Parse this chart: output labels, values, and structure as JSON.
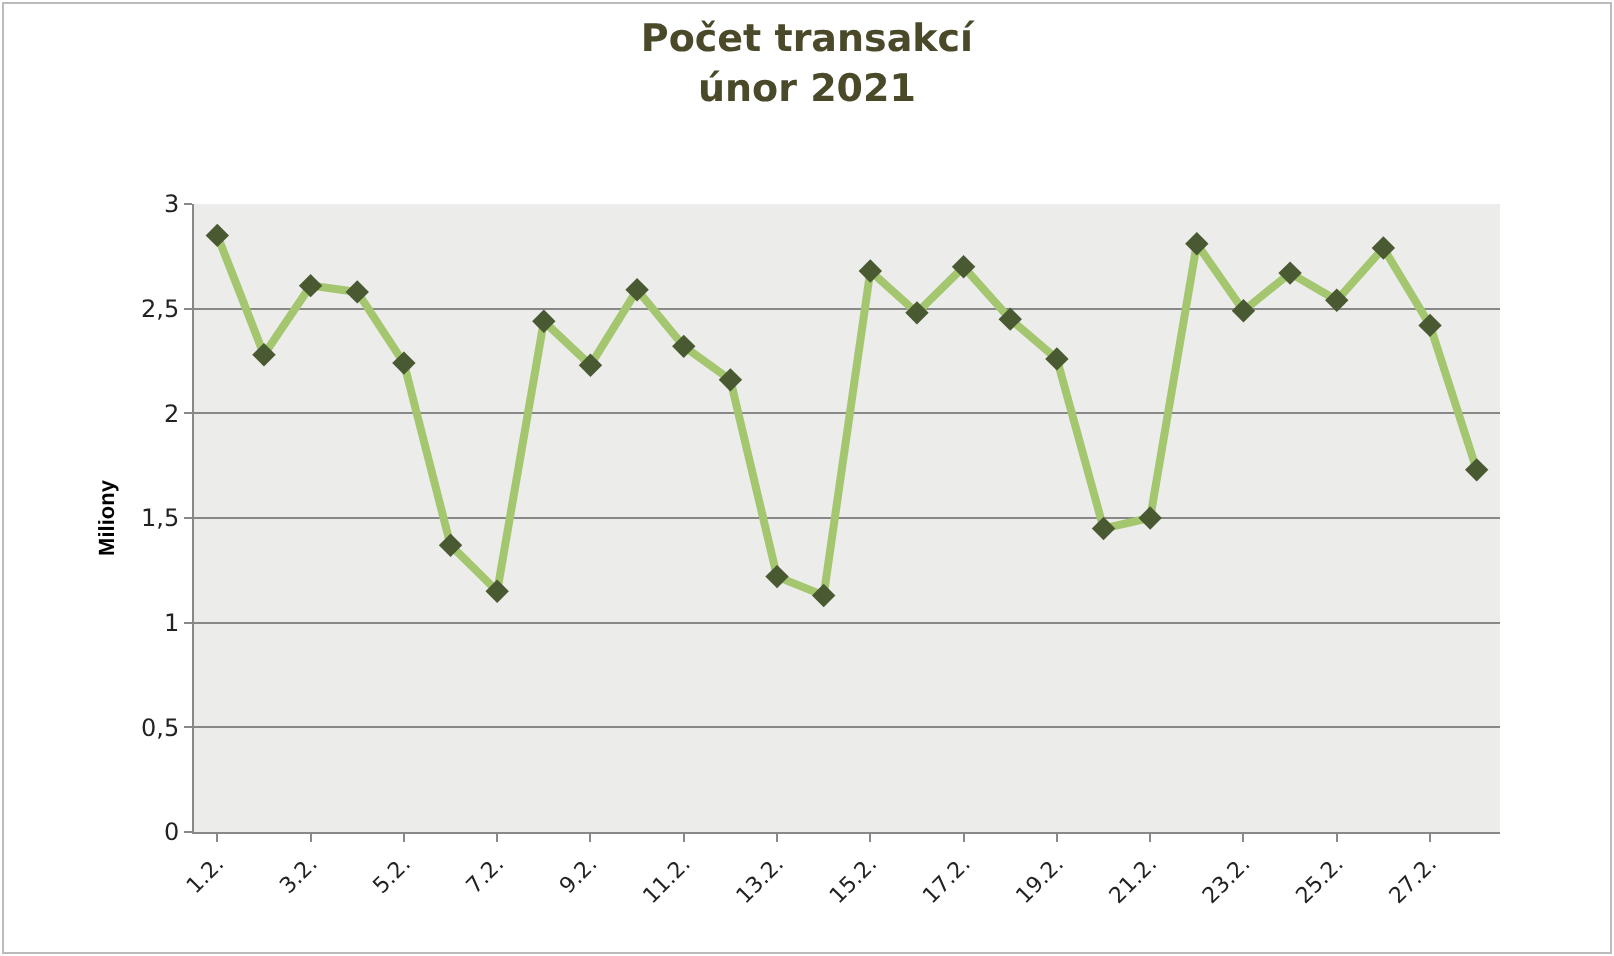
{
  "chart_data": {
    "type": "line",
    "title": "Počet transakcí",
    "subtitle": "únor 2021",
    "ylabel": "Miliony",
    "categories": [
      "1.2.",
      null,
      "3.2.",
      null,
      "5.2.",
      null,
      "7.2.",
      null,
      "9.2.",
      null,
      "11.2.",
      null,
      "13.2.",
      null,
      "15.2.",
      null,
      "17.2.",
      null,
      "19.2.",
      null,
      "21.2.",
      null,
      "23.2.",
      null,
      "25.2.",
      null,
      "27.2.",
      null
    ],
    "series": [
      {
        "color": "#a3c66f",
        "values": [
          2.85,
          2.28,
          2.61,
          2.58,
          2.24,
          1.37,
          1.15,
          2.44,
          2.23,
          2.59,
          2.32,
          2.16,
          1.22,
          1.13,
          2.68,
          2.48,
          2.7,
          2.45,
          2.26,
          1.45,
          1.5,
          2.81,
          2.49,
          2.67,
          2.54,
          2.79,
          2.42,
          1.73
        ]
      }
    ],
    "ylim": [
      0,
      3
    ],
    "yticks": [
      0,
      {
        "value": 0.5,
        "label": "0,5"
      },
      1,
      {
        "value": 1.5,
        "label": "1,5"
      },
      2,
      {
        "value": 2.5,
        "label": "2,5"
      },
      3
    ],
    "grid": "y",
    "marker": "diamond",
    "line_style": "solid",
    "legend": false
  }
}
